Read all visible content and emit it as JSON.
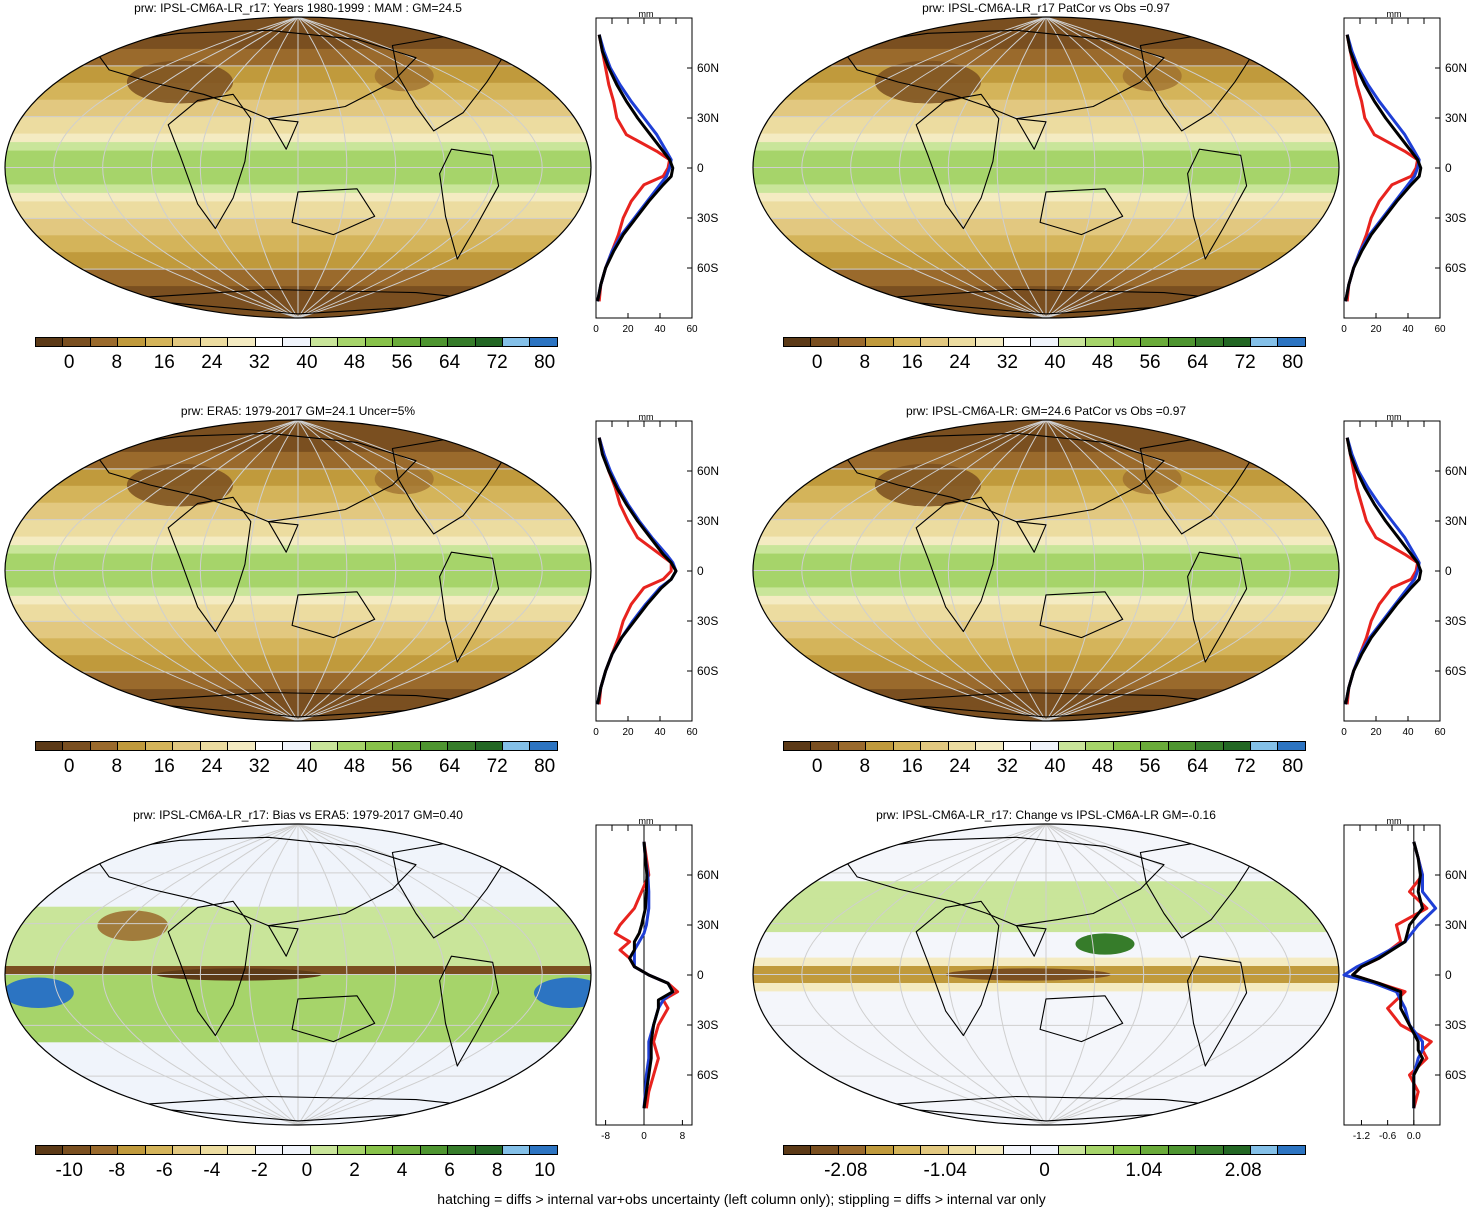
{
  "footnote": "hatching = diffs > internal var+obs uncertainty (left column only); stippling = diffs > internal var only",
  "colors": {
    "red_line": "#e8231e",
    "blue_line": "#1f3fd6",
    "black_line": "#000000",
    "abs_scale": [
      "#5c3a17",
      "#7a4f20",
      "#9a6a2c",
      "#c09a3c",
      "#d4b45a",
      "#e2c880",
      "#ecdca0",
      "#f4ebc2",
      "#ffffff",
      "#f0f4fb",
      "#c9e59a",
      "#a6d46a",
      "#88c24a",
      "#6aab3a",
      "#4e9530",
      "#367c2a",
      "#236724",
      "#84c0e8",
      "#2c74c2"
    ],
    "diff_scale": [
      "#5c3a17",
      "#7a4f20",
      "#9a6a2c",
      "#c09a3c",
      "#d4b45a",
      "#e2c880",
      "#ecdca0",
      "#f4ebc2",
      "#f4f6fb",
      "#f0f4fb",
      "#c9e59a",
      "#a6d46a",
      "#88c24a",
      "#6aab3a",
      "#4e9530",
      "#367c2a",
      "#236724",
      "#84c0e8",
      "#2c74c2"
    ]
  },
  "panels": [
    {
      "id": "p1",
      "title": "prw: IPSL-CM6A-LR_r17: Years 1980-1999 : MAM : GM=24.5",
      "map_style": "abs",
      "profile_unit": "mm",
      "lat_labels": [
        "60N",
        "30N",
        "0",
        "30S",
        "60S"
      ],
      "x_ticks": [
        "0",
        "20",
        "40",
        "60"
      ],
      "colorbar_labels": [
        "0",
        "8",
        "16",
        "24",
        "32",
        "40",
        "48",
        "56",
        "64",
        "72",
        "80"
      ]
    },
    {
      "id": "p2",
      "title": "prw: IPSL-CM6A-LR_r17 PatCor vs Obs =0.97",
      "map_style": "abs",
      "profile_unit": "mm",
      "lat_labels": [
        "60N",
        "30N",
        "0",
        "30S",
        "60S"
      ],
      "x_ticks": [
        "0",
        "20",
        "40",
        "60"
      ],
      "colorbar_labels": [
        "0",
        "8",
        "16",
        "24",
        "32",
        "40",
        "48",
        "56",
        "64",
        "72",
        "80"
      ]
    },
    {
      "id": "p3",
      "title": "prw: ERA5: 1979-2017 GM=24.1 Uncer=5%",
      "map_style": "abs",
      "profile_unit": "mm",
      "lat_labels": [
        "60N",
        "30N",
        "0",
        "30S",
        "60S"
      ],
      "x_ticks": [
        "0",
        "20",
        "40",
        "60"
      ],
      "colorbar_labels": [
        "0",
        "8",
        "16",
        "24",
        "32",
        "40",
        "48",
        "56",
        "64",
        "72",
        "80"
      ]
    },
    {
      "id": "p4",
      "title": "prw: IPSL-CM6A-LR: GM=24.6 PatCor vs Obs =0.97",
      "map_style": "abs",
      "profile_unit": "mm",
      "lat_labels": [
        "60N",
        "30N",
        "0",
        "30S",
        "60S"
      ],
      "x_ticks": [
        "0",
        "20",
        "40",
        "60"
      ],
      "colorbar_labels": [
        "0",
        "8",
        "16",
        "24",
        "32",
        "40",
        "48",
        "56",
        "64",
        "72",
        "80"
      ]
    },
    {
      "id": "p5",
      "title": "prw: IPSL-CM6A-LR_r17: Bias vs ERA5: 1979-2017 GM=0.40",
      "map_style": "bias",
      "profile_unit": "mm",
      "lat_labels": [
        "60N",
        "30N",
        "0",
        "30S",
        "60S"
      ],
      "x_ticks": [
        "-8",
        "0",
        "8"
      ],
      "colorbar_labels": [
        "-10",
        "-8",
        "-6",
        "-4",
        "-2",
        "0",
        "2",
        "4",
        "6",
        "8",
        "10"
      ]
    },
    {
      "id": "p6",
      "title": "prw: IPSL-CM6A-LR_r17: Change vs IPSL-CM6A-LR GM=-0.16",
      "map_style": "change",
      "profile_unit": "mm",
      "lat_labels": [
        "60N",
        "30N",
        "0",
        "30S",
        "60S"
      ],
      "x_ticks": [
        "-1.2",
        "-0.6",
        "0.0"
      ],
      "colorbar_labels": [
        "-2.08",
        "-1.04",
        "0",
        "1.04",
        "2.08"
      ]
    }
  ],
  "chart_data": [
    {
      "type": "line",
      "panel": "p1",
      "title": "prw: IPSL-CM6A-LR_r17: Years 1980-1999 : MAM : GM=24.5",
      "xlabel": "mm",
      "xlim": [
        0,
        60
      ],
      "ylim": [
        -90,
        90
      ],
      "x_unit_note": "zonal-mean precipitable water (mm) vs latitude (deg)",
      "series": [
        {
          "color": "red",
          "lat": [
            80,
            70,
            60,
            50,
            40,
            30,
            20,
            10,
            5,
            0,
            -5,
            -10,
            -20,
            -30,
            -40,
            -50,
            -60,
            -70,
            -80
          ],
          "values": [
            2,
            4,
            6,
            8,
            11,
            13,
            19,
            38,
            46,
            45,
            42,
            30,
            22,
            17,
            14,
            10,
            6,
            3,
            2
          ]
        },
        {
          "color": "blue",
          "lat": [
            80,
            70,
            60,
            50,
            40,
            30,
            20,
            10,
            5,
            0,
            -5,
            -10,
            -20,
            -30,
            -40,
            -50,
            -60,
            -70,
            -80
          ],
          "values": [
            2,
            5,
            9,
            15,
            22,
            30,
            38,
            44,
            47,
            46,
            44,
            40,
            32,
            24,
            16,
            10,
            6,
            3,
            1
          ]
        },
        {
          "color": "black",
          "lat": [
            80,
            70,
            60,
            50,
            40,
            30,
            20,
            10,
            5,
            0,
            -5,
            -10,
            -20,
            -30,
            -40,
            -50,
            -60,
            -70,
            -80
          ],
          "values": [
            2,
            4,
            8,
            13,
            19,
            26,
            34,
            42,
            46,
            48,
            47,
            42,
            33,
            25,
            17,
            11,
            6,
            3,
            1
          ]
        }
      ]
    },
    {
      "type": "line",
      "panel": "p2",
      "title": "prw: IPSL-CM6A-LR_r17 PatCor vs Obs =0.97",
      "xlabel": "mm",
      "xlim": [
        0,
        60
      ],
      "ylim": [
        -90,
        90
      ],
      "series": [
        {
          "color": "red",
          "lat": [
            80,
            70,
            60,
            50,
            40,
            30,
            20,
            10,
            5,
            0,
            -5,
            -10,
            -20,
            -30,
            -40,
            -50,
            -60,
            -70,
            -80
          ],
          "values": [
            2,
            4,
            6,
            8,
            11,
            13,
            19,
            38,
            46,
            45,
            42,
            30,
            22,
            17,
            14,
            10,
            6,
            3,
            2
          ]
        },
        {
          "color": "blue",
          "lat": [
            80,
            70,
            60,
            50,
            40,
            30,
            20,
            10,
            5,
            0,
            -5,
            -10,
            -20,
            -30,
            -40,
            -50,
            -60,
            -70,
            -80
          ],
          "values": [
            2,
            5,
            9,
            15,
            22,
            30,
            38,
            44,
            47,
            46,
            44,
            40,
            32,
            24,
            16,
            10,
            6,
            3,
            1
          ]
        },
        {
          "color": "black",
          "lat": [
            80,
            70,
            60,
            50,
            40,
            30,
            20,
            10,
            5,
            0,
            -5,
            -10,
            -20,
            -30,
            -40,
            -50,
            -60,
            -70,
            -80
          ],
          "values": [
            2,
            4,
            8,
            13,
            19,
            26,
            34,
            42,
            46,
            48,
            47,
            42,
            33,
            25,
            17,
            11,
            6,
            3,
            1
          ]
        }
      ]
    },
    {
      "type": "line",
      "panel": "p3",
      "title": "prw: ERA5: 1979-2017 GM=24.1 Uncer=5%",
      "xlabel": "mm",
      "xlim": [
        0,
        60
      ],
      "ylim": [
        -90,
        90
      ],
      "series": [
        {
          "color": "red",
          "lat": [
            80,
            70,
            60,
            50,
            40,
            30,
            20,
            10,
            5,
            0,
            -5,
            -10,
            -20,
            -30,
            -40,
            -50,
            -60,
            -70,
            -80
          ],
          "values": [
            2,
            5,
            8,
            12,
            15,
            20,
            26,
            40,
            47,
            47,
            42,
            30,
            22,
            17,
            14,
            10,
            6,
            3,
            2
          ]
        },
        {
          "color": "blue",
          "lat": [
            80,
            70,
            60,
            50,
            40,
            30,
            20,
            10,
            5,
            0,
            -5,
            -10,
            -20,
            -30,
            -40,
            -50,
            -60,
            -70,
            -80
          ],
          "values": [
            2,
            5,
            9,
            14,
            20,
            27,
            35,
            44,
            48,
            50,
            47,
            40,
            31,
            23,
            16,
            10,
            6,
            3,
            1
          ]
        },
        {
          "color": "black",
          "lat": [
            80,
            70,
            60,
            50,
            40,
            30,
            20,
            10,
            5,
            0,
            -5,
            -10,
            -20,
            -30,
            -40,
            -50,
            -60,
            -70,
            -80
          ],
          "values": [
            2,
            4,
            8,
            13,
            19,
            26,
            34,
            42,
            47,
            50,
            47,
            41,
            32,
            24,
            16,
            10,
            6,
            3,
            1
          ]
        }
      ]
    },
    {
      "type": "line",
      "panel": "p4",
      "title": "prw: IPSL-CM6A-LR: GM=24.6 PatCor vs Obs =0.97",
      "xlabel": "mm",
      "xlim": [
        0,
        60
      ],
      "ylim": [
        -90,
        90
      ],
      "series": [
        {
          "color": "red",
          "lat": [
            80,
            70,
            60,
            50,
            40,
            30,
            20,
            10,
            5,
            0,
            -5,
            -10,
            -20,
            -30,
            -40,
            -50,
            -60,
            -70,
            -80
          ],
          "values": [
            2,
            4,
            6,
            8,
            11,
            14,
            20,
            38,
            46,
            45,
            42,
            30,
            22,
            17,
            14,
            10,
            6,
            3,
            2
          ]
        },
        {
          "color": "blue",
          "lat": [
            80,
            70,
            60,
            50,
            40,
            30,
            20,
            10,
            5,
            0,
            -5,
            -10,
            -20,
            -30,
            -40,
            -50,
            -60,
            -70,
            -80
          ],
          "values": [
            2,
            5,
            9,
            15,
            22,
            30,
            38,
            44,
            47,
            46,
            44,
            40,
            32,
            24,
            16,
            10,
            6,
            3,
            1
          ]
        },
        {
          "color": "black",
          "lat": [
            80,
            70,
            60,
            50,
            40,
            30,
            20,
            10,
            5,
            0,
            -5,
            -10,
            -20,
            -30,
            -40,
            -50,
            -60,
            -70,
            -80
          ],
          "values": [
            2,
            4,
            8,
            13,
            19,
            26,
            34,
            42,
            46,
            48,
            47,
            42,
            33,
            25,
            17,
            11,
            6,
            3,
            1
          ]
        }
      ]
    },
    {
      "type": "line",
      "panel": "p5",
      "title": "prw: IPSL-CM6A-LR_r17: Bias vs ERA5: 1979-2017 GM=0.40",
      "xlabel": "mm",
      "xlim": [
        -10,
        10
      ],
      "ylim": [
        -90,
        90
      ],
      "series": [
        {
          "color": "red",
          "lat": [
            80,
            70,
            60,
            50,
            40,
            30,
            25,
            20,
            15,
            10,
            5,
            0,
            -5,
            -10,
            -15,
            -20,
            -30,
            -40,
            -50,
            -60,
            -70,
            -80
          ],
          "values": [
            0,
            0.5,
            1,
            -0.5,
            -2,
            -5,
            -6,
            -3,
            -5,
            -3,
            -2,
            1,
            5,
            7,
            4,
            5,
            3,
            2,
            3,
            2,
            1,
            0.5
          ]
        },
        {
          "color": "blue",
          "lat": [
            80,
            70,
            60,
            50,
            40,
            30,
            25,
            20,
            15,
            10,
            5,
            0,
            -5,
            -10,
            -15,
            -20,
            -30,
            -40,
            -50,
            -60,
            -70,
            -80
          ],
          "values": [
            0,
            0.3,
            0.8,
            1,
            1,
            0.5,
            0,
            -1,
            -2,
            -2,
            -2,
            1,
            5,
            6,
            4,
            3,
            2,
            1,
            1,
            0.5,
            0.3,
            0
          ]
        },
        {
          "color": "black",
          "lat": [
            80,
            70,
            60,
            50,
            40,
            30,
            25,
            20,
            15,
            10,
            5,
            0,
            -5,
            -10,
            -15,
            -20,
            -30,
            -40,
            -50,
            -60,
            -70,
            -80
          ],
          "values": [
            0,
            0.3,
            0.6,
            0.5,
            0.3,
            -0.5,
            -1,
            -2,
            -2,
            -3,
            -2,
            1,
            5,
            6,
            3,
            3,
            2,
            1.5,
            1.5,
            1,
            0.5,
            0
          ]
        }
      ]
    },
    {
      "type": "line",
      "panel": "p6",
      "title": "prw: IPSL-CM6A-LR_r17: Change vs IPSL-CM6A-LR GM=-0.16",
      "xlabel": "mm",
      "xlim": [
        -1.6,
        0.6
      ],
      "ylim": [
        -90,
        90
      ],
      "series": [
        {
          "color": "red",
          "lat": [
            80,
            70,
            60,
            50,
            40,
            30,
            20,
            10,
            5,
            0,
            -5,
            -10,
            -20,
            -30,
            -40,
            -45,
            -50,
            -60,
            -70,
            -80
          ],
          "values": [
            0,
            0.1,
            0.2,
            -0.1,
            0.3,
            -0.4,
            -0.3,
            -0.8,
            -1.2,
            -1.4,
            -0.8,
            -0.2,
            -0.6,
            -0.3,
            0.4,
            0.2,
            0.3,
            -0.1,
            0.1,
            0
          ]
        },
        {
          "color": "blue",
          "lat": [
            80,
            70,
            60,
            50,
            40,
            30,
            20,
            10,
            5,
            0,
            -5,
            -10,
            -20,
            -30,
            -40,
            -45,
            -50,
            -60,
            -70,
            -80
          ],
          "values": [
            0,
            0.1,
            0.2,
            0.2,
            0.5,
            0.1,
            -0.2,
            -0.9,
            -1.3,
            -1.6,
            -0.9,
            -0.4,
            -0.2,
            -0.1,
            0.2,
            0.2,
            0.1,
            0,
            0,
            0
          ]
        },
        {
          "color": "black",
          "lat": [
            80,
            70,
            60,
            50,
            40,
            30,
            20,
            10,
            5,
            0,
            -5,
            -10,
            -20,
            -30,
            -40,
            -45,
            -50,
            -60,
            -70,
            -80
          ],
          "values": [
            0,
            0.1,
            0.15,
            0.1,
            0.2,
            -0.1,
            -0.2,
            -0.8,
            -1.2,
            -1.4,
            -0.8,
            -0.3,
            -0.3,
            -0.1,
            0.1,
            0.1,
            0.2,
            0,
            0,
            0
          ]
        }
      ]
    }
  ]
}
